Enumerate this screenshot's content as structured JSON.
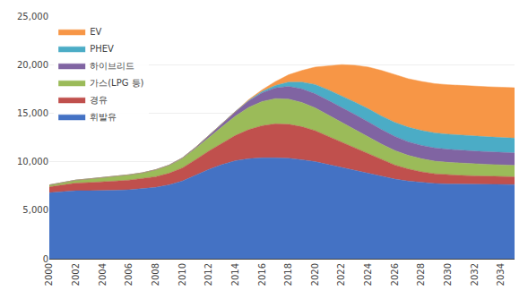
{
  "chart_data": {
    "type": "area",
    "stacked": true,
    "grid": true,
    "legend": "upper left",
    "x": [
      2000,
      2001,
      2002,
      2003,
      2004,
      2005,
      2006,
      2007,
      2008,
      2009,
      2010,
      2011,
      2012,
      2013,
      2014,
      2015,
      2016,
      2017,
      2018,
      2019,
      2020,
      2021,
      2022,
      2023,
      2024,
      2025,
      2026,
      2027,
      2028,
      2029,
      2030,
      2031,
      2032,
      2033,
      2034,
      2035
    ],
    "xlim": [
      2000,
      2035
    ],
    "xticks": [
      2000,
      2002,
      2004,
      2006,
      2008,
      2010,
      2012,
      2014,
      2016,
      2018,
      2020,
      2022,
      2024,
      2026,
      2028,
      2030,
      2032,
      2034
    ],
    "ylim": [
      0,
      25000
    ],
    "yticks": [
      0,
      {
        "value": 5000,
        "label": "5,000"
      },
      {
        "value": 10000,
        "label": "10,000"
      },
      {
        "value": 15000,
        "label": "15,000"
      },
      {
        "value": 20000,
        "label": "20,000"
      },
      {
        "value": 25000,
        "label": "25,000"
      }
    ],
    "series": [
      {
        "name": "휘발유",
        "color": "#4472C4",
        "values": [
          6800,
          6900,
          7000,
          7000,
          7000,
          7050,
          7100,
          7200,
          7350,
          7600,
          8000,
          8600,
          9200,
          9700,
          10100,
          10300,
          10400,
          10400,
          10350,
          10200,
          10000,
          9700,
          9400,
          9100,
          8800,
          8500,
          8200,
          8000,
          7850,
          7750,
          7700,
          7680,
          7670,
          7660,
          7650,
          7640
        ]
      },
      {
        "name": "경유",
        "color": "#C0504D",
        "values": [
          600,
          700,
          800,
          850,
          900,
          950,
          1000,
          1050,
          1100,
          1200,
          1350,
          1600,
          1900,
          2200,
          2600,
          3000,
          3300,
          3500,
          3500,
          3400,
          3200,
          2900,
          2600,
          2300,
          2000,
          1700,
          1450,
          1250,
          1100,
          1000,
          950,
          900,
          870,
          840,
          820,
          800
        ]
      },
      {
        "name": "가스(LPG 등)",
        "color": "#9BBB59",
        "values": [
          200,
          250,
          300,
          380,
          450,
          500,
          550,
          600,
          700,
          800,
          950,
          1150,
          1400,
          1700,
          2000,
          2300,
          2500,
          2600,
          2600,
          2500,
          2350,
          2200,
          2050,
          1900,
          1750,
          1600,
          1500,
          1400,
          1350,
          1300,
          1280,
          1260,
          1240,
          1220,
          1200,
          1180
        ]
      },
      {
        "name": "하이브리드",
        "color": "#8064A2",
        "values": [
          0,
          0,
          0,
          0,
          0,
          0,
          0,
          0,
          20,
          40,
          80,
          120,
          200,
          300,
          450,
          650,
          900,
          1100,
          1300,
          1400,
          1450,
          1500,
          1550,
          1550,
          1550,
          1500,
          1450,
          1400,
          1380,
          1360,
          1340,
          1320,
          1310,
          1300,
          1290,
          1280
        ]
      },
      {
        "name": "PHEV",
        "color": "#4BACC6",
        "values": [
          0,
          0,
          0,
          0,
          0,
          0,
          0,
          0,
          0,
          0,
          0,
          0,
          0,
          0,
          30,
          60,
          120,
          250,
          450,
          700,
          950,
          1100,
          1200,
          1280,
          1350,
          1400,
          1450,
          1500,
          1530,
          1550,
          1560,
          1560,
          1550,
          1540,
          1530,
          1520
        ]
      },
      {
        "name": "EV",
        "color": "#F79646",
        "values": [
          0,
          0,
          0,
          0,
          0,
          0,
          0,
          0,
          0,
          0,
          0,
          0,
          0,
          0,
          30,
          80,
          180,
          400,
          750,
          1200,
          1800,
          2500,
          3200,
          3800,
          4300,
          4700,
          4900,
          5000,
          5050,
          5080,
          5100,
          5120,
          5140,
          5160,
          5180,
          5200
        ]
      }
    ]
  }
}
